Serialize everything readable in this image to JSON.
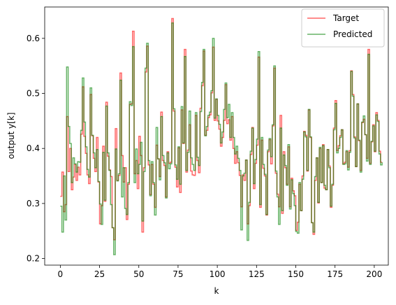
{
  "chart_data": {
    "type": "line",
    "title": "",
    "xlabel": "k",
    "ylabel": "output y[k]",
    "xlim": [
      -9.95,
      208.95
    ],
    "ylim": [
      0.188,
      0.657
    ],
    "x_ticks": [
      0,
      25,
      50,
      75,
      100,
      125,
      150,
      175,
      200
    ],
    "y_ticks": [
      0.2,
      0.3,
      0.4,
      0.5,
      0.6
    ],
    "x_tick_labels": [
      "0",
      "25",
      "50",
      "75",
      "100",
      "125",
      "150",
      "175",
      "200"
    ],
    "y_tick_labels": [
      "0.2",
      "0.3",
      "0.4",
      "0.5",
      "0.6"
    ],
    "grid": false,
    "legend_position": "top-right",
    "step": true,
    "series": [
      {
        "name": "Target",
        "color": "#ff0000",
        "alpha": 0.6,
        "values": [
          0.313,
          0.357,
          0.285,
          0.298,
          0.458,
          0.358,
          0.4,
          0.325,
          0.348,
          0.371,
          0.342,
          0.366,
          0.352,
          0.426,
          0.512,
          0.422,
          0.391,
          0.352,
          0.336,
          0.498,
          0.423,
          0.382,
          0.358,
          0.42,
          0.339,
          0.263,
          0.296,
          0.404,
          0.304,
          0.484,
          0.386,
          0.361,
          0.349,
          0.256,
          0.234,
          0.436,
          0.342,
          0.351,
          0.537,
          0.387,
          0.339,
          0.365,
          0.271,
          0.335,
          0.48,
          0.481,
          0.613,
          0.354,
          0.378,
          0.327,
          0.422,
          0.387,
          0.248,
          0.365,
          0.539,
          0.586,
          0.37,
          0.316,
          0.371,
          0.335,
          0.293,
          0.406,
          0.381,
          0.349,
          0.466,
          0.378,
          0.369,
          0.312,
          0.394,
          0.373,
          0.375,
          0.636,
          0.468,
          0.366,
          0.33,
          0.401,
          0.32,
          0.47,
          0.409,
          0.58,
          0.357,
          0.397,
          0.443,
          0.359,
          0.352,
          0.351,
          0.46,
          0.378,
          0.356,
          0.473,
          0.514,
          0.577,
          0.424,
          0.433,
          0.456,
          0.461,
          0.501,
          0.584,
          0.451,
          0.489,
          0.45,
          0.435,
          0.404,
          0.42,
          0.451,
          0.516,
          0.445,
          0.452,
          0.415,
          0.458,
          0.4,
          0.373,
          0.394,
          0.374,
          0.351,
          0.294,
          0.352,
          0.342,
          0.379,
          0.263,
          0.296,
          0.389,
          0.438,
          0.327,
          0.373,
          0.406,
          0.566,
          0.293,
          0.415,
          0.364,
          0.35,
          0.279,
          0.394,
          0.416,
          0.372,
          0.441,
          0.546,
          0.355,
          0.317,
          0.294,
          0.46,
          0.282,
          0.394,
          0.365,
          0.335,
          0.403,
          0.294,
          0.346,
          0.323,
          0.314,
          0.251,
          0.266,
          0.335,
          0.287,
          0.35,
          0.431,
          0.424,
          0.359,
          0.47,
          0.42,
          0.265,
          0.244,
          0.342,
          0.383,
          0.301,
          0.4,
          0.338,
          0.407,
          0.328,
          0.325,
          0.398,
          0.368,
          0.293,
          0.333,
          0.437,
          0.487,
          0.396,
          0.405,
          0.423,
          0.434,
          0.372,
          0.375,
          0.394,
          0.366,
          0.396,
          0.541,
          0.498,
          0.421,
          0.367,
          0.481,
          0.414,
          0.36,
          0.447,
          0.453,
          0.425,
          0.382,
          0.58,
          0.373,
          0.412,
          0.443,
          0.394,
          0.465,
          0.451,
          0.395,
          0.375,
          0.375
        ]
      },
      {
        "name": "Predicted",
        "color": "#008000",
        "alpha": 0.6,
        "values": [
          0.295,
          0.248,
          0.35,
          0.27,
          0.548,
          0.44,
          0.409,
          0.338,
          0.383,
          0.372,
          0.357,
          0.376,
          0.375,
          0.433,
          0.528,
          0.448,
          0.403,
          0.362,
          0.348,
          0.51,
          0.424,
          0.392,
          0.365,
          0.398,
          0.34,
          0.299,
          0.262,
          0.393,
          0.306,
          0.477,
          0.392,
          0.36,
          0.298,
          0.256,
          0.207,
          0.399,
          0.341,
          0.354,
          0.524,
          0.312,
          0.365,
          0.291,
          0.28,
          0.338,
          0.485,
          0.478,
          0.585,
          0.338,
          0.399,
          0.354,
          0.371,
          0.411,
          0.268,
          0.358,
          0.546,
          0.591,
          0.378,
          0.314,
          0.376,
          0.338,
          0.279,
          0.438,
          0.381,
          0.343,
          0.458,
          0.387,
          0.374,
          0.31,
          0.392,
          0.363,
          0.372,
          0.628,
          0.472,
          0.37,
          0.344,
          0.403,
          0.335,
          0.476,
          0.41,
          0.567,
          0.36,
          0.393,
          0.468,
          0.383,
          0.371,
          0.36,
          0.465,
          0.384,
          0.369,
          0.467,
          0.52,
          0.58,
          0.423,
          0.44,
          0.46,
          0.466,
          0.505,
          0.6,
          0.455,
          0.49,
          0.46,
          0.444,
          0.41,
          0.43,
          0.471,
          0.519,
          0.456,
          0.48,
          0.42,
          0.465,
          0.42,
          0.39,
          0.404,
          0.382,
          0.36,
          0.252,
          0.35,
          0.355,
          0.379,
          0.233,
          0.302,
          0.395,
          0.437,
          0.336,
          0.38,
          0.417,
          0.576,
          0.298,
          0.42,
          0.371,
          0.353,
          0.28,
          0.397,
          0.418,
          0.385,
          0.443,
          0.55,
          0.359,
          0.312,
          0.262,
          0.437,
          0.287,
          0.388,
          0.369,
          0.333,
          0.407,
          0.29,
          0.343,
          0.318,
          0.296,
          0.249,
          0.246,
          0.338,
          0.287,
          0.344,
          0.43,
          0.421,
          0.36,
          0.471,
          0.421,
          0.265,
          0.248,
          0.349,
          0.383,
          0.302,
          0.402,
          0.338,
          0.405,
          0.333,
          0.325,
          0.398,
          0.365,
          0.295,
          0.335,
          0.434,
          0.482,
          0.392,
          0.4,
          0.42,
          0.434,
          0.371,
          0.372,
          0.396,
          0.361,
          0.393,
          0.54,
          0.495,
          0.419,
          0.367,
          0.481,
          0.415,
          0.357,
          0.448,
          0.459,
          0.425,
          0.377,
          0.571,
          0.371,
          0.413,
          0.441,
          0.395,
          0.461,
          0.449,
          0.39,
          0.37,
          0.375
        ]
      }
    ]
  }
}
